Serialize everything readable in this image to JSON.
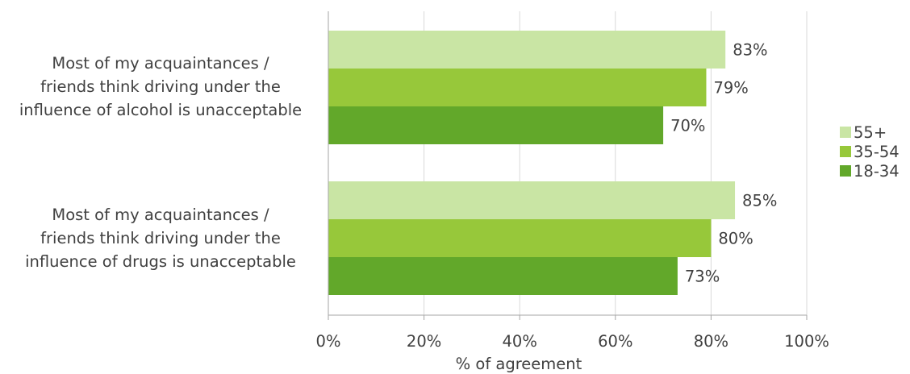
{
  "chart_data": {
    "type": "bar",
    "orientation": "horizontal",
    "categories": [
      "Most of my acquaintances / friends think driving under the influence of alcohol is unacceptable",
      "Most of my acquaintances / friends think driving under the influence of drugs is unacceptable"
    ],
    "category_lines": [
      [
        "Most of my acquaintances /",
        "friends think driving under the",
        "influence of alcohol is unacceptable"
      ],
      [
        "Most of my acquaintances /",
        "friends think driving under the",
        "influence of drugs is unacceptable"
      ]
    ],
    "series": [
      {
        "name": "55+",
        "color": "#c9e5a4",
        "values": [
          83,
          85
        ],
        "labels": [
          "83%",
          "85%"
        ]
      },
      {
        "name": "35-54",
        "color": "#97c83a",
        "values": [
          79,
          80
        ],
        "labels": [
          "79%",
          "80%"
        ]
      },
      {
        "name": "18-34",
        "color": "#62a82a",
        "values": [
          70,
          73
        ],
        "labels": [
          "70%",
          "73%"
        ]
      }
    ],
    "xlabel": "% of agreement",
    "xlim": [
      0,
      100
    ],
    "xticks": [
      0,
      20,
      40,
      60,
      80,
      100
    ],
    "xtick_labels": [
      "0%",
      "20%",
      "40%",
      "60%",
      "80%",
      "100%"
    ],
    "grid": true,
    "legend_position": "right"
  }
}
